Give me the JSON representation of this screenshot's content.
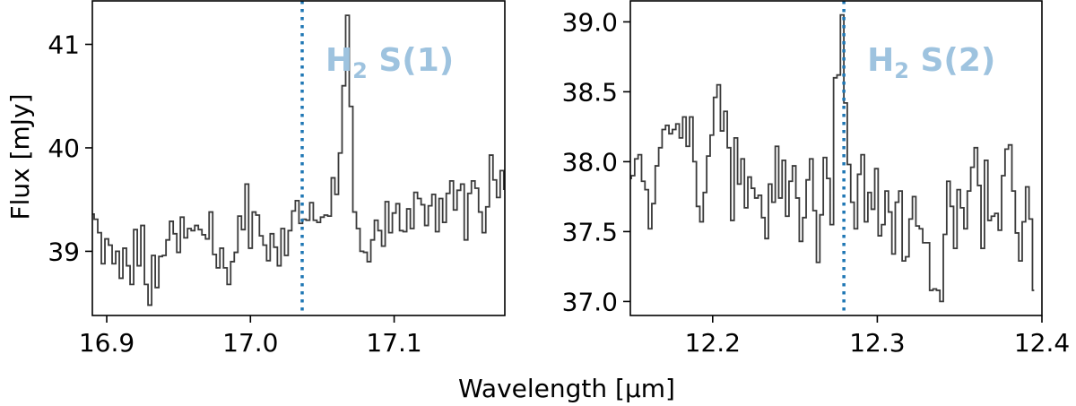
{
  "figure": {
    "ylabel": "Flux [mJy]",
    "xlabel": "Wavelength [μm]"
  },
  "colors": {
    "spectrum": "#3a3a3a",
    "marker": "#1f77b4",
    "label": "#9ec3df"
  },
  "chart_data": [
    {
      "type": "line",
      "drawstyle": "steps-mid",
      "title": "",
      "xlim": [
        16.89,
        17.177
      ],
      "ylim": [
        38.38,
        41.42
      ],
      "x_ticks": [
        16.9,
        17.0,
        17.1
      ],
      "x_tick_labels": [
        "16.9",
        "17.0",
        "17.1"
      ],
      "y_ticks": [
        39,
        40,
        41
      ],
      "y_tick_labels": [
        "39",
        "40",
        "41"
      ],
      "annotation": {
        "text": "H",
        "sub": "2",
        "rest": " S(1)",
        "x": 17.036,
        "linestyle": "dotted"
      },
      "x_start": 16.89,
      "x_step": 0.0025,
      "values": [
        39.36,
        39.31,
        39.18,
        38.88,
        39.12,
        39.06,
        38.88,
        39.0,
        38.74,
        39.03,
        38.86,
        38.68,
        39.21,
        38.86,
        39.25,
        38.68,
        38.48,
        38.96,
        38.65,
        38.95,
        38.96,
        39.11,
        39.29,
        39.17,
        38.99,
        39.33,
        39.13,
        39.22,
        39.2,
        39.25,
        39.21,
        39.16,
        39.12,
        39.38,
        38.97,
        38.84,
        39.03,
        38.84,
        38.68,
        38.9,
        38.99,
        39.34,
        39.21,
        39.65,
        39.03,
        39.38,
        39.35,
        39.15,
        39.06,
        38.91,
        39.17,
        39.04,
        38.86,
        39.22,
        38.96,
        39.2,
        39.39,
        39.49,
        39.27,
        39.31,
        39.3,
        39.47,
        39.3,
        39.28,
        39.33,
        39.35,
        39.34,
        39.71,
        39.55,
        39.95,
        40.6,
        41.28,
        40.4,
        39.38,
        39.22,
        39.0,
        38.99,
        38.9,
        39.11,
        39.3,
        39.2,
        39.05,
        39.48,
        39.18,
        39.37,
        39.46,
        39.2,
        39.19,
        39.41,
        39.22,
        39.57,
        39.51,
        39.45,
        39.25,
        39.44,
        39.55,
        39.19,
        39.51,
        39.28,
        39.56,
        39.68,
        39.4,
        39.59,
        39.65,
        39.11,
        39.56,
        39.68,
        39.61,
        39.38,
        39.18,
        39.43,
        39.93,
        39.69,
        39.52,
        39.78,
        39.6,
        39.67,
        39.6,
        39.73
      ]
    },
    {
      "type": "line",
      "drawstyle": "steps-mid",
      "title": "",
      "xlim": [
        12.15,
        12.4
      ],
      "ylim": [
        36.9,
        39.15
      ],
      "x_ticks": [
        12.2,
        12.3,
        12.4
      ],
      "x_tick_labels": [
        "12.2",
        "12.3",
        "12.4"
      ],
      "y_ticks": [
        37.0,
        37.5,
        38.0,
        38.5,
        39.0
      ],
      "y_tick_labels": [
        "37.0",
        "37.5",
        "38.0",
        "38.5",
        "39.0"
      ],
      "annotation": {
        "text": "H",
        "sub": "2",
        "rest": " S(2)",
        "x": 12.2797,
        "linestyle": "dotted"
      },
      "x_start": 12.1495,
      "x_step": 0.002083,
      "values": [
        37.88,
        37.9,
        38.02,
        38.05,
        37.86,
        37.8,
        37.52,
        37.7,
        37.97,
        38.1,
        38.23,
        38.26,
        38.2,
        38.23,
        38.27,
        38.17,
        38.32,
        38.11,
        38.32,
        38.0,
        37.68,
        37.57,
        37.78,
        38.04,
        38.19,
        38.46,
        38.55,
        38.22,
        38.36,
        38.1,
        37.58,
        38.17,
        37.84,
        38.02,
        37.67,
        37.89,
        37.81,
        37.74,
        37.76,
        37.6,
        37.45,
        37.84,
        37.71,
        38.11,
        37.74,
        38.01,
        37.61,
        37.86,
        37.97,
        37.74,
        37.43,
        37.6,
        37.87,
        38.02,
        37.65,
        37.28,
        37.62,
        38.03,
        37.88,
        37.55,
        38.6,
        38.62,
        39.05,
        38.42,
        37.98,
        37.71,
        37.52,
        37.91,
        38.05,
        37.57,
        37.78,
        37.66,
        37.95,
        37.47,
        37.55,
        37.79,
        37.64,
        37.34,
        37.71,
        37.79,
        37.29,
        37.32,
        37.59,
        37.75,
        37.54,
        37.52,
        37.42,
        37.42,
        37.08,
        37.09,
        37.08,
        37.0,
        37.48,
        37.86,
        37.68,
        37.38,
        37.8,
        37.67,
        37.52,
        37.79,
        37.96,
        38.1,
        37.83,
        37.38,
        38.01,
        37.58,
        37.61,
        37.63,
        37.51,
        37.9,
        38.09,
        38.12,
        37.79,
        37.49,
        37.29,
        37.57,
        37.82,
        37.59,
        37.08
      ]
    }
  ]
}
